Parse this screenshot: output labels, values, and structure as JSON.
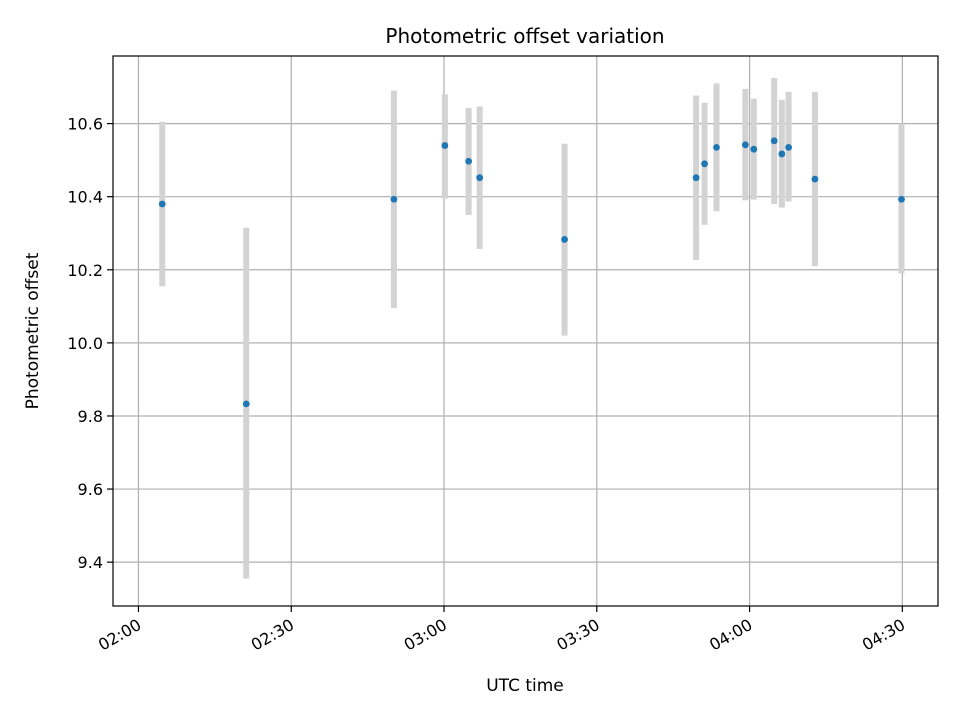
{
  "chart_data": {
    "type": "scatter",
    "title": "Photometric offset variation",
    "xlabel": "UTC time",
    "ylabel": "Photometric offset",
    "x_is_time": true,
    "xlim": [
      "01:55",
      "04:37"
    ],
    "ylim": [
      9.28,
      10.785
    ],
    "x_ticks": [
      "02:00",
      "02:30",
      "03:00",
      "03:30",
      "04:00",
      "04:30"
    ],
    "y_ticks": [
      9.4,
      9.6,
      9.8,
      10.0,
      10.2,
      10.4,
      10.6
    ],
    "y_tick_labels": [
      "9.4",
      "9.6",
      "9.8",
      "10.0",
      "10.2",
      "10.4",
      "10.6"
    ],
    "grid": true,
    "point_color": "#1f77b4",
    "errorbar_color": "#d3d3d3",
    "points": [
      {
        "t": "02:04:40",
        "y": 10.38,
        "low": 10.155,
        "high": 10.605
      },
      {
        "t": "02:21:10",
        "y": 9.833,
        "low": 9.355,
        "high": 10.315
      },
      {
        "t": "02:50:10",
        "y": 10.393,
        "low": 10.095,
        "high": 10.69
      },
      {
        "t": "03:00:10",
        "y": 10.54,
        "low": 10.395,
        "high": 10.68
      },
      {
        "t": "03:04:50",
        "y": 10.497,
        "low": 10.35,
        "high": 10.643
      },
      {
        "t": "03:07:00",
        "y": 10.452,
        "low": 10.257,
        "high": 10.647
      },
      {
        "t": "03:23:40",
        "y": 10.283,
        "low": 10.02,
        "high": 10.545
      },
      {
        "t": "03:49:30",
        "y": 10.452,
        "low": 10.227,
        "high": 10.677
      },
      {
        "t": "03:51:10",
        "y": 10.49,
        "low": 10.323,
        "high": 10.657
      },
      {
        "t": "03:53:30",
        "y": 10.535,
        "low": 10.36,
        "high": 10.71
      },
      {
        "t": "03:59:10",
        "y": 10.542,
        "low": 10.39,
        "high": 10.695
      },
      {
        "t": "04:00:50",
        "y": 10.53,
        "low": 10.392,
        "high": 10.668
      },
      {
        "t": "04:04:50",
        "y": 10.553,
        "low": 10.38,
        "high": 10.725
      },
      {
        "t": "04:06:20",
        "y": 10.517,
        "low": 10.37,
        "high": 10.665
      },
      {
        "t": "04:07:40",
        "y": 10.535,
        "low": 10.387,
        "high": 10.687
      },
      {
        "t": "04:12:50",
        "y": 10.448,
        "low": 10.21,
        "high": 10.687
      },
      {
        "t": "04:29:50",
        "y": 10.393,
        "low": 10.19,
        "high": 10.6
      }
    ]
  }
}
